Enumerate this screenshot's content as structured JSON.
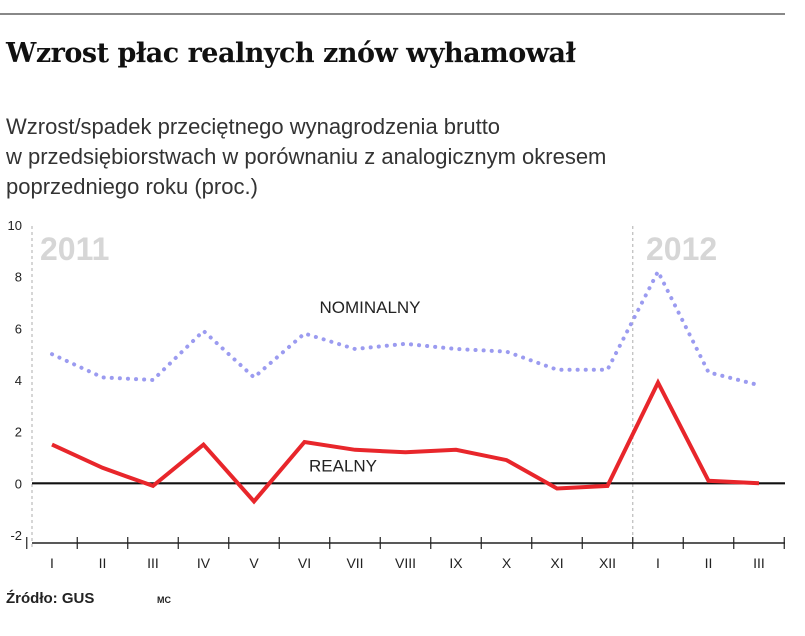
{
  "header": {
    "title": "Wzrost płac realnych znów wyhamował",
    "subtitle_lines": [
      "Wzrost/spadek przeciętnego wynagrodzenia brutto",
      "w przedsiębiorstwach w porównaniu z analogicznym okresem",
      "poprzedniego roku (proc.)"
    ]
  },
  "footer": {
    "source": "Źródło: GUS",
    "credit": "MC"
  },
  "colors": {
    "nominal": "#9b9bf0",
    "real": "#e8262b",
    "zero_line": "#111111",
    "grid": "#bbbbbb",
    "year_label": "#d6d6d6"
  },
  "chart_data": {
    "type": "line",
    "categories": [
      "I",
      "II",
      "III",
      "IV",
      "V",
      "VI",
      "VII",
      "VIII",
      "IX",
      "X",
      "XI",
      "XII",
      "I",
      "II",
      "III"
    ],
    "year_labels": [
      {
        "text": "2011",
        "start_index": 0
      },
      {
        "text": "2012",
        "start_index": 12
      }
    ],
    "series": [
      {
        "name": "NOMINALNY",
        "style": "dotted",
        "values": [
          5.0,
          4.1,
          4.0,
          5.9,
          4.1,
          5.8,
          5.2,
          5.4,
          5.2,
          5.1,
          4.4,
          4.4,
          8.2,
          4.3,
          3.8
        ]
      },
      {
        "name": "REALNY",
        "style": "solid",
        "values": [
          1.5,
          0.6,
          -0.1,
          1.5,
          -0.7,
          1.6,
          1.3,
          1.2,
          1.3,
          0.9,
          -0.2,
          -0.1,
          3.9,
          0.1,
          0.0
        ]
      }
    ],
    "yticks": [
      10,
      8,
      6,
      4,
      2,
      0,
      -2
    ],
    "ylim": [
      -2,
      10
    ],
    "grid": false
  }
}
